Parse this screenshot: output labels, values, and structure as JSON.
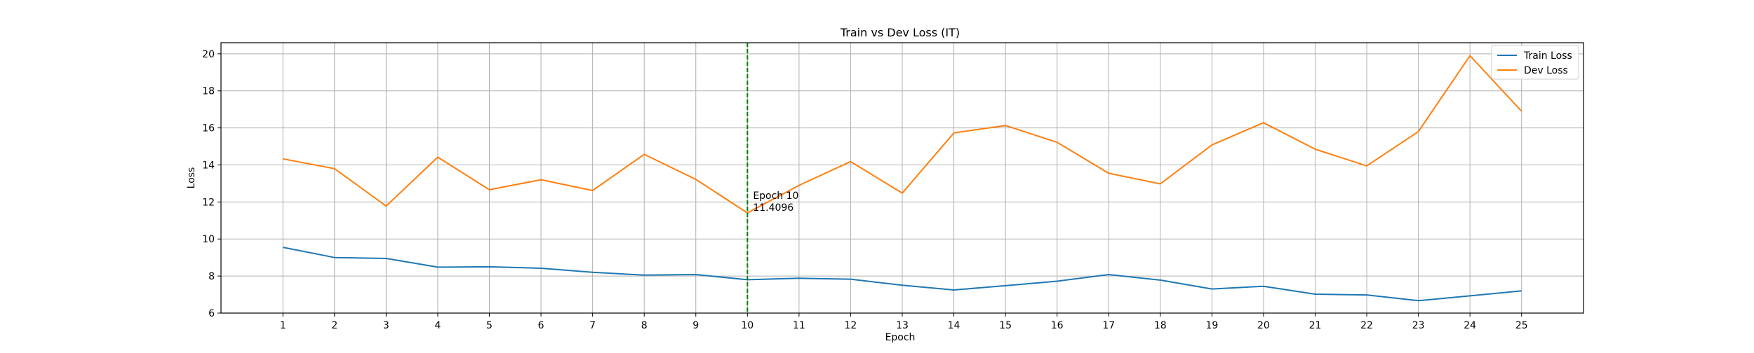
{
  "chart_data": {
    "type": "line",
    "title": "Train vs Dev Loss (IT)",
    "xlabel": "Epoch",
    "ylabel": "Loss",
    "x": [
      1,
      2,
      3,
      4,
      5,
      6,
      7,
      8,
      9,
      10,
      11,
      12,
      13,
      14,
      15,
      16,
      17,
      18,
      19,
      20,
      21,
      22,
      23,
      24,
      25
    ],
    "xlim": [
      -0.2,
      26.2
    ],
    "ylim": [
      6,
      20.6
    ],
    "yticks": [
      6,
      8,
      10,
      12,
      14,
      16,
      18,
      20
    ],
    "grid": true,
    "legend_position": "top-right",
    "series": [
      {
        "name": "Train Loss",
        "color": "#1f77b4",
        "values": [
          9.55,
          9.0,
          8.95,
          8.48,
          8.5,
          8.42,
          8.2,
          8.05,
          8.08,
          7.8,
          7.88,
          7.83,
          7.5,
          7.25,
          7.48,
          7.72,
          8.08,
          7.78,
          7.3,
          7.45,
          7.02,
          6.98,
          6.67,
          6.93,
          7.2
        ]
      },
      {
        "name": "Dev Loss",
        "color": "#ff7f0e",
        "values": [
          14.33,
          13.8,
          11.78,
          14.42,
          12.66,
          13.2,
          12.62,
          14.57,
          13.22,
          11.41,
          12.9,
          14.18,
          12.48,
          15.73,
          16.13,
          15.22,
          13.55,
          12.98,
          15.08,
          16.28,
          14.85,
          13.95,
          15.8,
          19.9,
          16.9
        ]
      }
    ],
    "marker_line": {
      "x": 10,
      "color": "#008000"
    },
    "annotation": {
      "x": 10,
      "y": 11.4096,
      "line1": "Epoch 10",
      "line2": "11.4096"
    }
  }
}
